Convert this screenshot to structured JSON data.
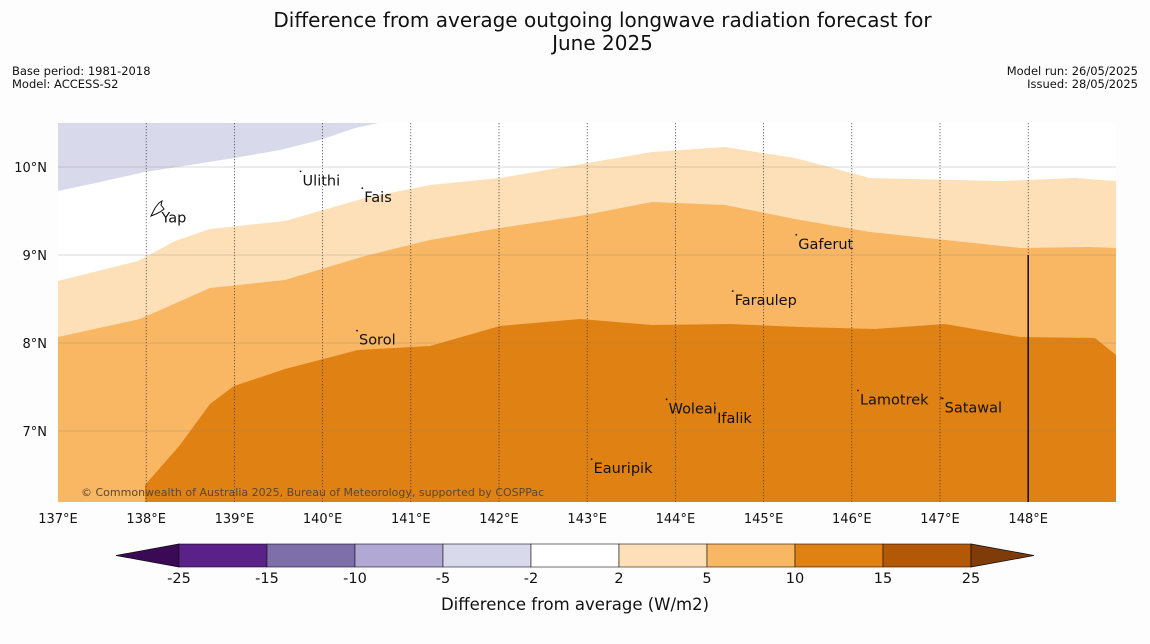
{
  "title": {
    "line1": "Difference from average outgoing longwave radiation forecast for",
    "line2": "June 2025"
  },
  "meta": {
    "base_period": "Base period: 1981-2018",
    "model": "Model: ACCESS-S2",
    "model_run": "Model run: 26/05/2025",
    "issued": "Issued: 28/05/2025"
  },
  "map": {
    "lon_range": [
      137,
      149
    ],
    "lat_range": [
      6.2,
      10.5
    ],
    "lon_ticks": [
      137,
      138,
      139,
      140,
      141,
      142,
      143,
      144,
      145,
      146,
      147,
      148
    ],
    "lon_tick_labels": [
      "137°E",
      "138°E",
      "139°E",
      "140°E",
      "141°E",
      "142°E",
      "143°E",
      "144°E",
      "145°E",
      "146°E",
      "147°E",
      "148°E"
    ],
    "lat_ticks": [
      7,
      8,
      9,
      10
    ],
    "lat_tick_labels": [
      "7°N",
      "8°N",
      "9°N",
      "10°N"
    ],
    "places": [
      {
        "name": "Ulithi",
        "lon": 139.75,
        "lat": 9.95
      },
      {
        "name": "Fais",
        "lon": 140.45,
        "lat": 9.76
      },
      {
        "name": "Yap",
        "lon": 138.15,
        "lat": 9.53
      },
      {
        "name": "Gaferut",
        "lon": 145.37,
        "lat": 9.23
      },
      {
        "name": "Faraulep",
        "lon": 144.65,
        "lat": 8.59
      },
      {
        "name": "Sorol",
        "lon": 140.39,
        "lat": 8.14
      },
      {
        "name": "Lamotrek",
        "lon": 146.07,
        "lat": 7.46
      },
      {
        "name": "Woleai",
        "lon": 143.9,
        "lat": 7.36
      },
      {
        "name": "Ifalik",
        "lon": 144.45,
        "lat": 7.25
      },
      {
        "name": "Satawal",
        "lon": 147.03,
        "lat": 7.37
      },
      {
        "name": "Eauripik",
        "lon": 143.05,
        "lat": 6.68
      }
    ],
    "marker_line_lon": 148,
    "copyright": "© Commonwealth of Australia 2025, Bureau of Meteorology, supported by COSPPac"
  },
  "colorbar": {
    "colors": [
      "#3b0a57",
      "#5a2188",
      "#7e6fab",
      "#b1a8d3",
      "#d8d9ea",
      "#ffffff",
      "#fde0b7",
      "#f9b663",
      "#e08114",
      "#b35806",
      "#7f3b08"
    ],
    "tick_labels": [
      "-25",
      "-15",
      "-10",
      "-5",
      "-2",
      "2",
      "5",
      "10",
      "15",
      "25"
    ],
    "label": "Difference from average (W/m2)"
  }
}
